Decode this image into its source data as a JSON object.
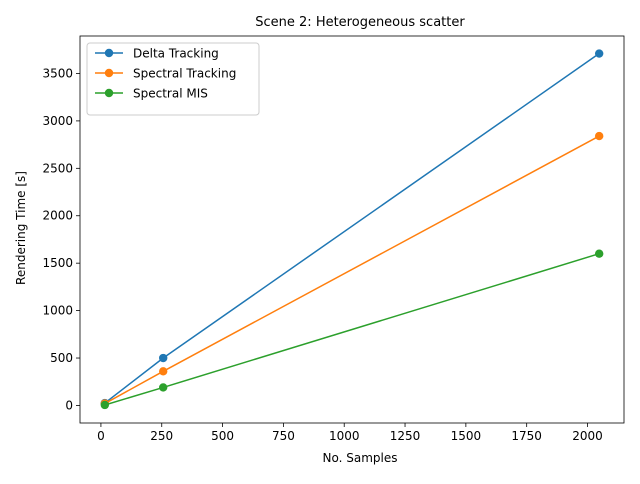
{
  "chart_data": {
    "type": "line",
    "title": "Scene 2: Heterogeneous scatter",
    "xlabel": "No. Samples",
    "ylabel": "Rendering Time [s]",
    "x": [
      16,
      256,
      2048
    ],
    "series": [
      {
        "name": "Delta Tracking",
        "color": "#1f77b4",
        "values": [
          25,
          500,
          3710
        ]
      },
      {
        "name": "Spectral Tracking",
        "color": "#ff7f0e",
        "values": [
          20,
          360,
          2840
        ]
      },
      {
        "name": "Spectral MIS",
        "color": "#2ca02c",
        "values": [
          5,
          190,
          1600
        ]
      }
    ],
    "xlim": [
      -86,
      2150
    ],
    "ylim": [
      -185,
      3895
    ],
    "xticks": [
      0,
      250,
      500,
      750,
      1000,
      1250,
      1500,
      1750,
      2000
    ],
    "yticks": [
      0,
      500,
      1000,
      1500,
      2000,
      2500,
      3000,
      3500
    ],
    "grid": false,
    "legend_position": "upper-left",
    "marker": "circle"
  }
}
